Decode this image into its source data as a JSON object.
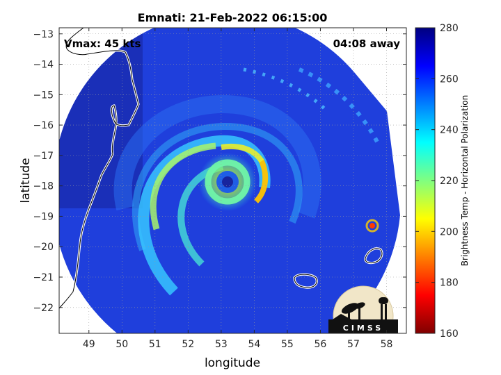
{
  "chart_data": {
    "type": "heatmap",
    "title": "Emnati: 21-Feb-2022 06:15:00",
    "xlabel": "longitude",
    "ylabel": "latitude",
    "xlim": [
      48.1,
      58.6
    ],
    "ylim": [
      -22.85,
      -12.8
    ],
    "x_ticks": [
      49,
      50,
      51,
      52,
      53,
      54,
      55,
      56,
      57,
      58
    ],
    "y_ticks": [
      -13,
      -14,
      -15,
      -16,
      -17,
      -18,
      -19,
      -20,
      -21,
      -22
    ],
    "grid": true,
    "annotations": {
      "vmax": "Vmax: 45 kts",
      "away": "04:08 away"
    },
    "storm_center": {
      "lon": 53.1,
      "lat": -17.9
    },
    "colorbar": {
      "label": "Brightness Temp - Horizontal Polarization",
      "range": [
        160,
        280
      ],
      "ticks": [
        280,
        260,
        240,
        220,
        200,
        180,
        160
      ]
    },
    "logo_text": "CIMSS"
  },
  "colors": {
    "background_tb": "#1f3fdc",
    "coast": "#ffffff"
  }
}
